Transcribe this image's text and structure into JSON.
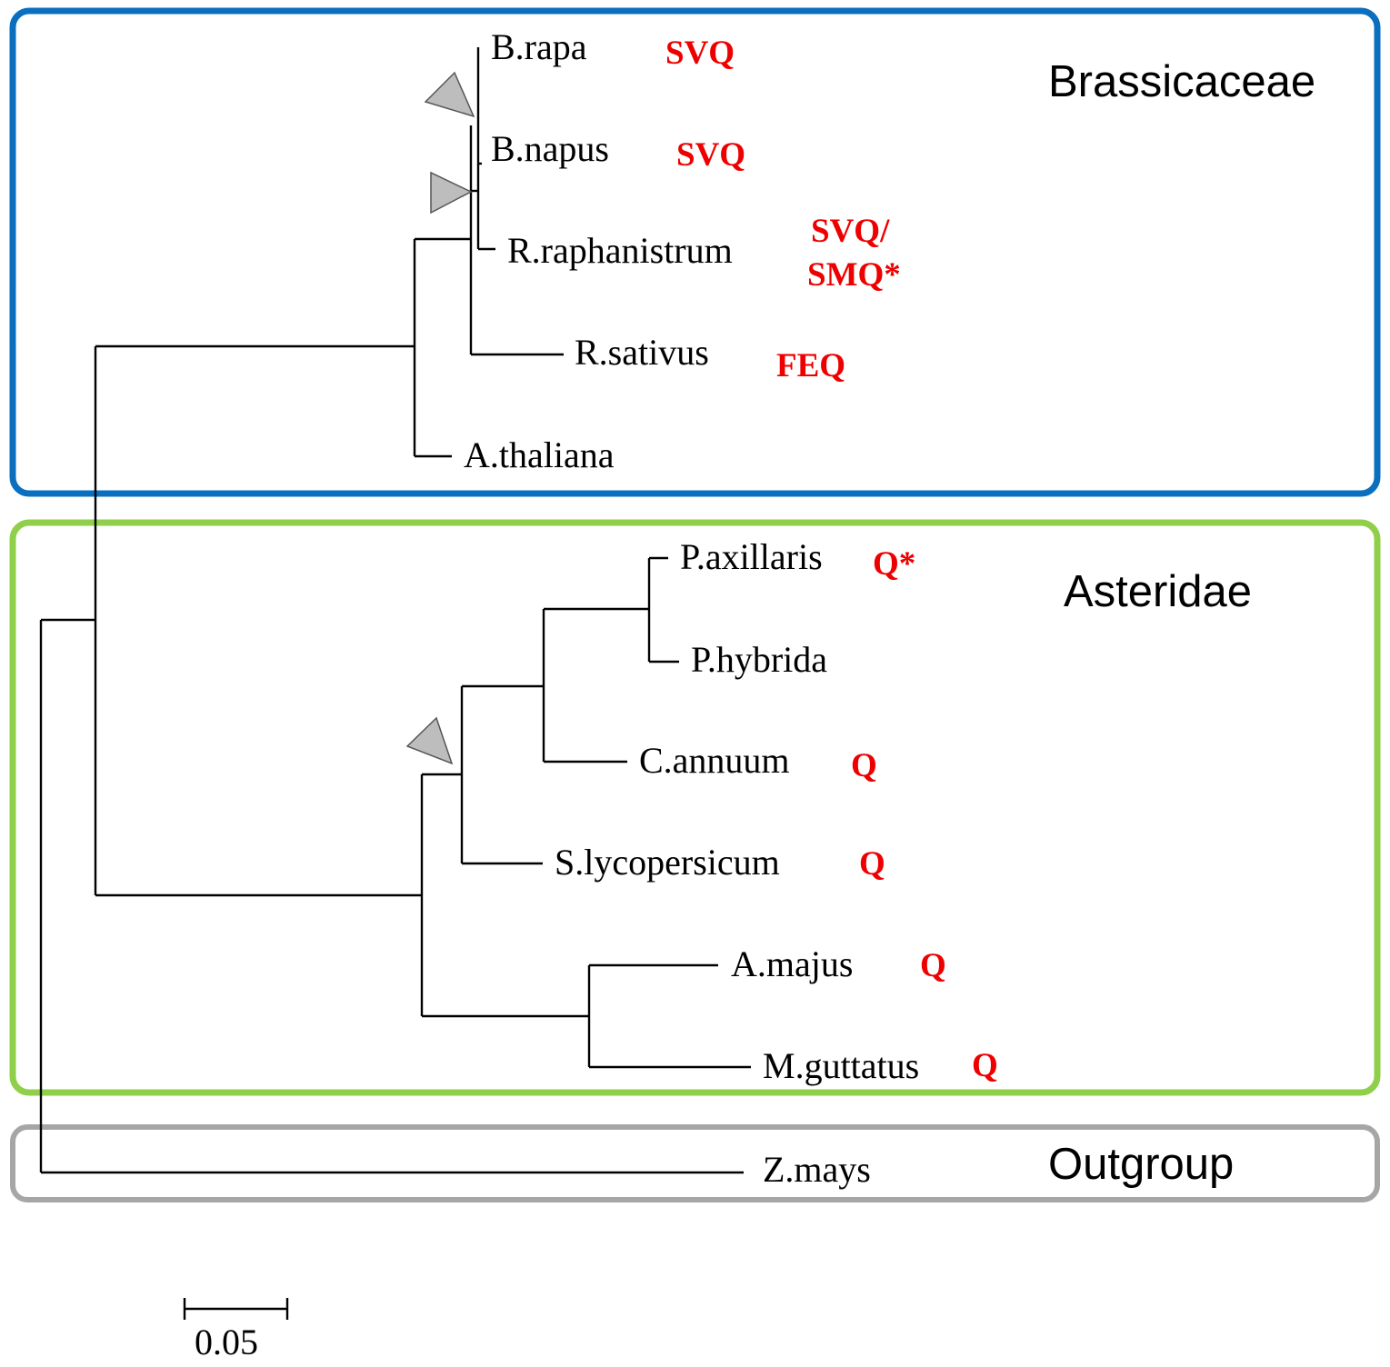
{
  "groups": {
    "brassicaceae": {
      "label": "Brassicaceae",
      "color": "#0a6fbf"
    },
    "asteridae": {
      "label": "Asteridae",
      "color": "#8fcf4a"
    },
    "outgroup": {
      "label": "Outgroup",
      "color": "#a6a6a6"
    }
  },
  "taxa": {
    "b_rapa": {
      "name": "B.rapa",
      "motif": "SVQ"
    },
    "b_napus": {
      "name": "B.napus",
      "motif": "SVQ"
    },
    "r_raphanistrum": {
      "name": "R.raphanistrum",
      "motif_line1": "SVQ/",
      "motif_line2": "SMQ*"
    },
    "r_sativus": {
      "name": "R.sativus",
      "motif": "FEQ"
    },
    "a_thaliana": {
      "name": "A.thaliana"
    },
    "p_axillaris": {
      "name": "P.axillaris",
      "motif": "Q*"
    },
    "p_hybrida": {
      "name": "P.hybrida"
    },
    "c_annuum": {
      "name": "C.annuum",
      "motif": "Q"
    },
    "s_lycopersicum": {
      "name": "S.lycopersicum",
      "motif": "Q"
    },
    "a_majus": {
      "name": "A.majus",
      "motif": "Q"
    },
    "m_guttatus": {
      "name": "M.guttatus",
      "motif": "Q"
    },
    "z_mays": {
      "name": "Z.mays"
    }
  },
  "scale_bar": {
    "label": "0.05"
  },
  "colors": {
    "motif": "#ee0000",
    "marker": "#bdbdbd"
  }
}
